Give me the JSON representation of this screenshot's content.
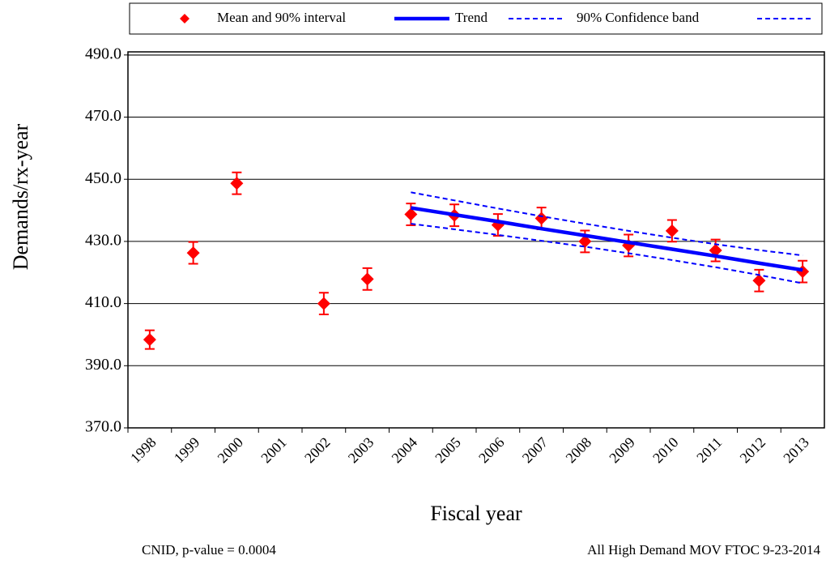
{
  "chart_data": {
    "type": "line",
    "x_label": "Fiscal year",
    "y_label": "Demands/rx-year",
    "footer_left": "CNID, p-value = 0.0004",
    "footer_right": "All High Demand MOV FTOC 9-23-2014",
    "categories": [
      "1998",
      "1999",
      "2000",
      "2001",
      "2002",
      "2003",
      "2004",
      "2005",
      "2006",
      "2007",
      "2008",
      "2009",
      "2010",
      "2011",
      "2012",
      "2013"
    ],
    "series": [
      {
        "name": "Mean and 90% interval",
        "color": "#ff0000",
        "line_style": "none",
        "marker": "diamond",
        "values": [
          398.4,
          426.3,
          448.7,
          null,
          410.0,
          417.9,
          438.7,
          438.4,
          435.3,
          437.4,
          430.0,
          428.7,
          433.4,
          427.1,
          417.4,
          420.3
        ],
        "errors": [
          3,
          3.5,
          3.5,
          null,
          3.5,
          3.5,
          3.5,
          3.5,
          3.5,
          3.5,
          3.5,
          3.5,
          3.5,
          3.5,
          3.5,
          3.5
        ]
      },
      {
        "name": "Trend",
        "color": "#0000ff",
        "line_style": "solid",
        "values": [
          null,
          null,
          null,
          null,
          null,
          null,
          440.8,
          438.6,
          436.4,
          434.1,
          431.9,
          429.7,
          427.5,
          425.3,
          423.0,
          420.8
        ]
      },
      {
        "name": "90% Confidence band",
        "color": "#0000ff",
        "line_style": "dashed",
        "values": [
          null,
          null,
          null,
          null,
          null,
          null,
          445.8,
          443.2,
          440.6,
          438.1,
          435.7,
          433.4,
          431.2,
          429.1,
          427.2,
          425.5
        ]
      },
      {
        "color": "#0000ff",
        "line_style": "dashed",
        "values": [
          null,
          null,
          null,
          null,
          null,
          null,
          435.7,
          433.9,
          432.1,
          430.2,
          428.3,
          426.2,
          424.0,
          421.7,
          419.2,
          416.5
        ]
      }
    ],
    "ylim": [
      370,
      491
    ],
    "yticks": [
      {
        "value": 370,
        "label": "370.0"
      },
      {
        "value": 390,
        "label": "390.0"
      },
      {
        "value": 410,
        "label": "410.0"
      },
      {
        "value": 430,
        "label": "430.0"
      },
      {
        "value": 450,
        "label": "450.0"
      },
      {
        "value": 470,
        "label": "470.0"
      },
      {
        "value": 490,
        "label": "490.0"
      }
    ],
    "grid": true
  }
}
